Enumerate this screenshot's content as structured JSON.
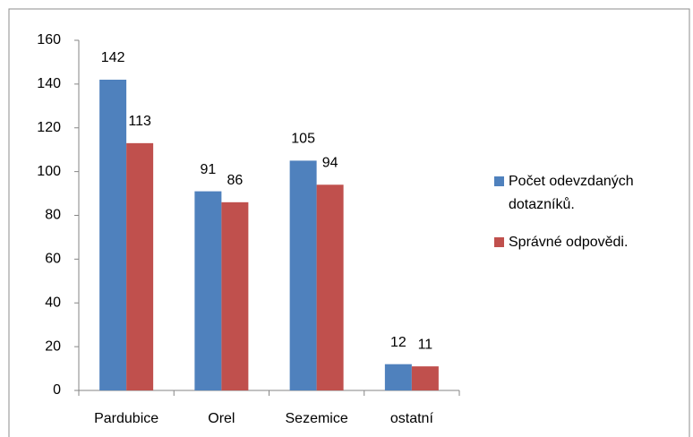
{
  "chart_data": {
    "type": "bar",
    "categories": [
      "Pardubice",
      "Orel",
      "Sezemice",
      "ostatní"
    ],
    "series": [
      {
        "name": "Počet odevzdaných dotazníků.",
        "color": "#4f81bd",
        "values": [
          142,
          91,
          105,
          12
        ]
      },
      {
        "name": "Správné odpovědi.",
        "color": "#c0504d",
        "values": [
          113,
          86,
          94,
          11
        ]
      }
    ],
    "ylim": [
      0,
      160
    ],
    "yticks": [
      0,
      20,
      40,
      60,
      80,
      100,
      120,
      140,
      160
    ],
    "grid": false,
    "legend": "right",
    "data_labels": true
  }
}
